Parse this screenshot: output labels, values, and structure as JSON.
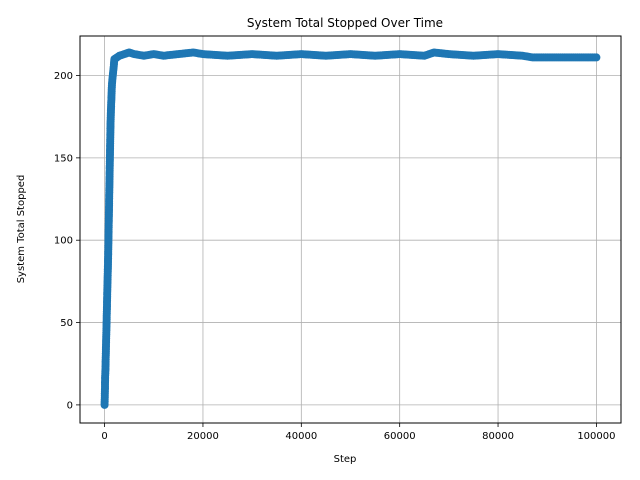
{
  "chart_data": {
    "type": "line",
    "title": "System Total Stopped Over Time",
    "xlabel": "Step",
    "ylabel": "System Total Stopped",
    "xlim": [
      -5000,
      105000
    ],
    "ylim": [
      -11,
      224
    ],
    "xticks": [
      0,
      20000,
      40000,
      60000,
      80000,
      100000
    ],
    "yticks": [
      0,
      50,
      100,
      150,
      200
    ],
    "grid": true,
    "marker": "circle",
    "series": [
      {
        "color": "#1f77b4",
        "x": [
          0,
          60,
          120,
          180,
          240,
          300,
          360,
          420,
          480,
          540,
          600,
          660,
          720,
          780,
          840,
          900,
          960,
          1020,
          1080,
          1140,
          1200,
          1300,
          1500,
          2000,
          3000,
          4000,
          5000,
          6000,
          8000,
          10000,
          12000,
          15000,
          18000,
          20000,
          25000,
          30000,
          35000,
          40000,
          45000,
          50000,
          55000,
          60000,
          65000,
          67000,
          70000,
          75000,
          80000,
          85000,
          87000,
          90000,
          95000,
          100000
        ],
        "y": [
          0,
          8,
          18,
          22,
          30,
          38,
          45,
          52,
          60,
          68,
          75,
          82,
          90,
          100,
          110,
          120,
          130,
          140,
          150,
          160,
          170,
          180,
          195,
          210,
          212,
          213,
          214,
          213,
          212,
          213,
          212,
          213,
          214,
          213,
          212,
          213,
          212,
          213,
          212,
          213,
          212,
          213,
          212,
          214,
          213,
          212,
          213,
          212,
          211,
          211,
          211,
          211
        ]
      }
    ]
  }
}
